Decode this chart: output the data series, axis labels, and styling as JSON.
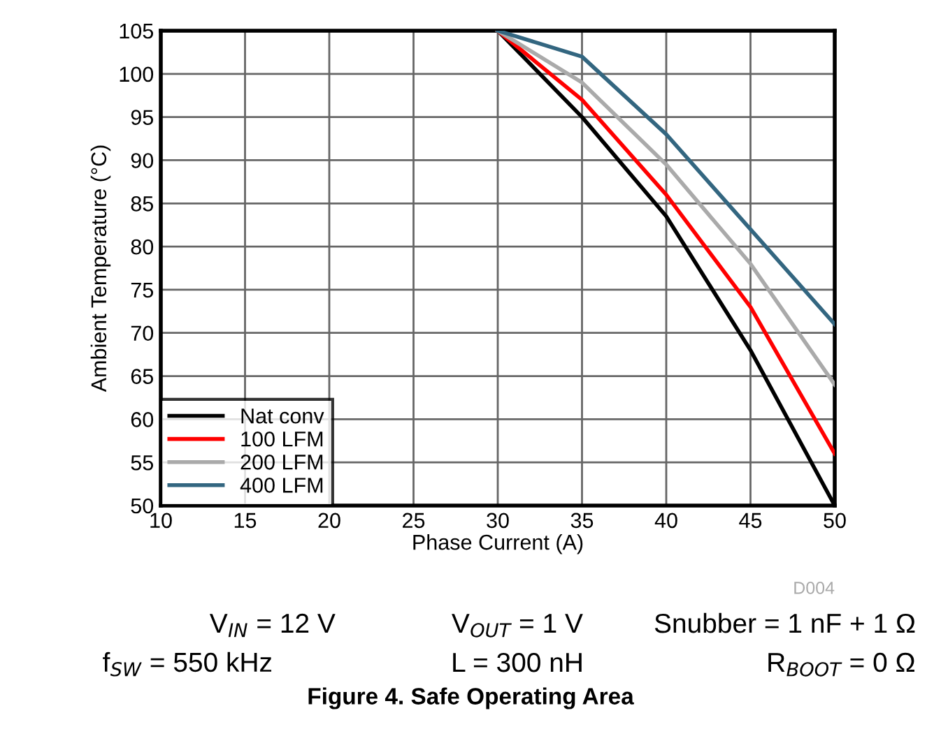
{
  "chart_data": {
    "type": "line",
    "title": "Figure 4. Safe Operating Area",
    "xlabel": "Phase Current (A)",
    "ylabel": "Ambient Temperature (°C)",
    "x": [
      30,
      35,
      40,
      45,
      50
    ],
    "series": [
      {
        "name": "Nat conv",
        "color": "#000000",
        "values": [
          105,
          95,
          83.5,
          68,
          50
        ]
      },
      {
        "name": "100 LFM",
        "color": "#ff0000",
        "values": [
          105,
          97,
          86,
          73,
          56
        ]
      },
      {
        "name": "200 LFM",
        "color": "#aaaaaa",
        "values": [
          105,
          99,
          89.5,
          78,
          64
        ]
      },
      {
        "name": "400 LFM",
        "color": "#336680",
        "values": [
          105,
          102,
          93,
          82,
          71
        ]
      }
    ],
    "xlim": [
      10,
      50
    ],
    "xticks": [
      10,
      15,
      20,
      25,
      30,
      35,
      40,
      45,
      50
    ],
    "ylim": [
      50,
      105
    ],
    "yticks": [
      50,
      55,
      60,
      65,
      70,
      75,
      80,
      85,
      90,
      95,
      100,
      105
    ],
    "grid": true,
    "legend": "bottom left",
    "marker": "none",
    "line_style": "solid",
    "annotations": [
      "D004",
      "V$_{IN}$ = 12 V",
      "V$_{OUT}$ = 1 V",
      "Snubber = 1 nF + 1 Ω",
      "f$_{SW}$ = 550 kHz",
      "L = 300 nH",
      "R$_{BOOT}$ = 0 Ω"
    ]
  }
}
